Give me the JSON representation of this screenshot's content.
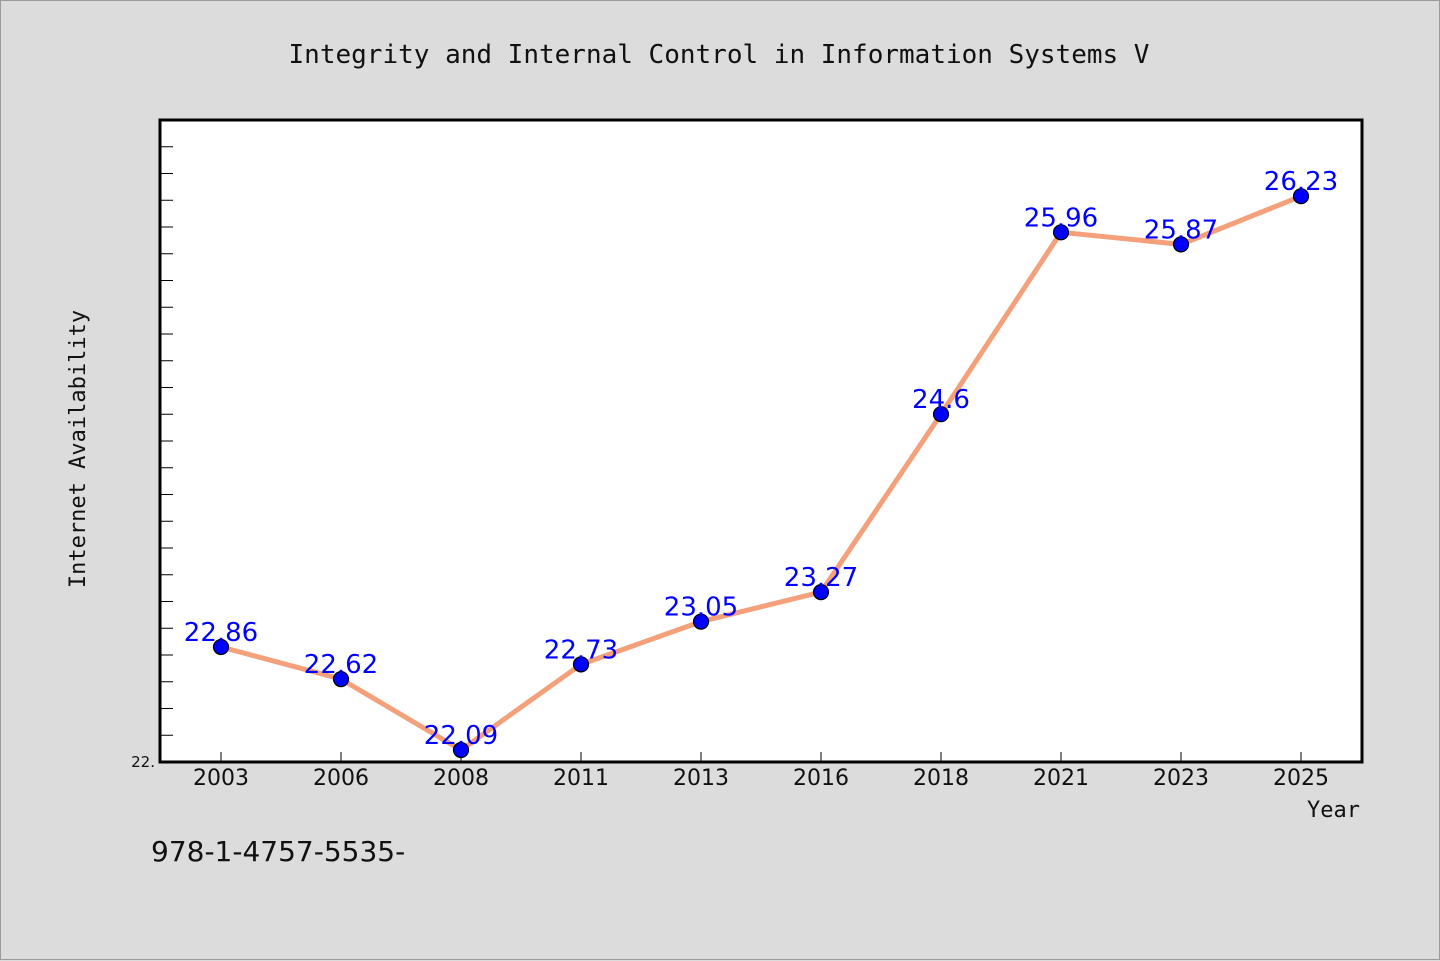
{
  "chart_data": {
    "type": "line",
    "title": "Integrity and Internal Control in Information Systems V",
    "xlabel": "Year",
    "ylabel": "Internet Availability",
    "categories": [
      "2003",
      "2006",
      "2008",
      "2011",
      "2013",
      "2016",
      "2018",
      "2021",
      "2023",
      "2025"
    ],
    "values": [
      22.86,
      22.62,
      22.09,
      22.73,
      23.05,
      23.27,
      24.6,
      25.96,
      25.87,
      26.23
    ],
    "data_labels": [
      "22.86",
      "22.62",
      "22.09",
      "22.73",
      "23.05",
      "23.27",
      "24.6",
      "25.96",
      "25.87",
      "26.23"
    ],
    "y_tick_label": "22.",
    "ylim": [
      22.0,
      26.8
    ],
    "grid": false,
    "legend": "none",
    "colors": {
      "line": "#f4a07a",
      "marker": "#0000ff",
      "data_label": "#0000ff",
      "plot_background": "#ffffff",
      "page_background": "#dcdcdc"
    }
  },
  "footer_note": "978-1-4757-5535-"
}
